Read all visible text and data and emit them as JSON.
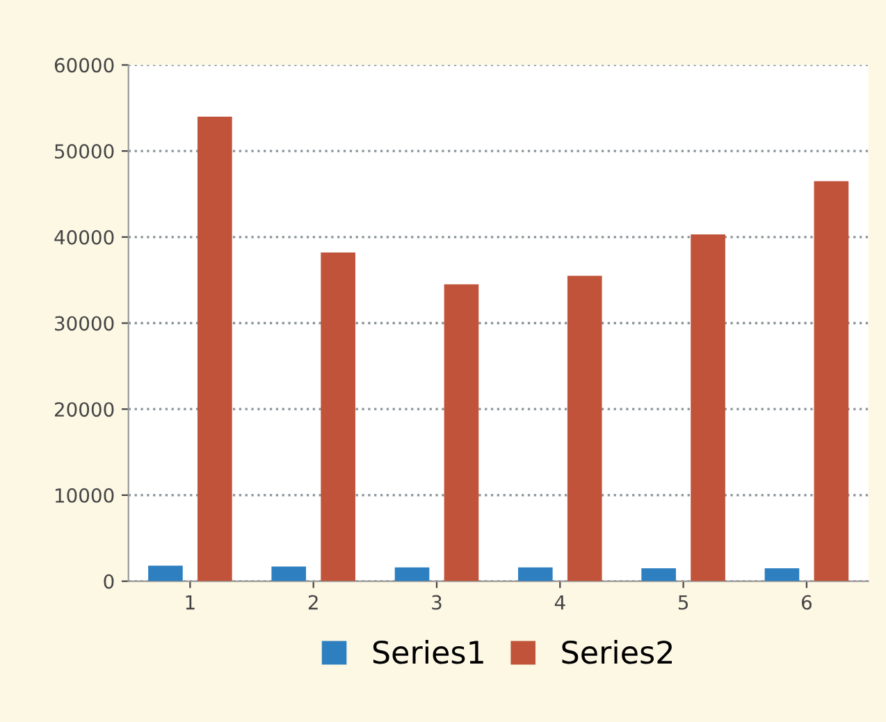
{
  "chart_data": {
    "type": "bar",
    "categories": [
      "1",
      "2",
      "3",
      "4",
      "5",
      "6"
    ],
    "series": [
      {
        "name": "Series1",
        "color": "#2e7fc0",
        "values": [
          1800,
          1700,
          1600,
          1600,
          1500,
          1500
        ]
      },
      {
        "name": "Series2",
        "color": "#c0533a",
        "values": [
          54000,
          38200,
          34500,
          35500,
          40300,
          46500
        ]
      }
    ],
    "ylim": [
      0,
      60000
    ],
    "yticks": [
      0,
      10000,
      20000,
      30000,
      40000,
      50000,
      60000
    ],
    "grid": "y",
    "legend": "bottom"
  }
}
